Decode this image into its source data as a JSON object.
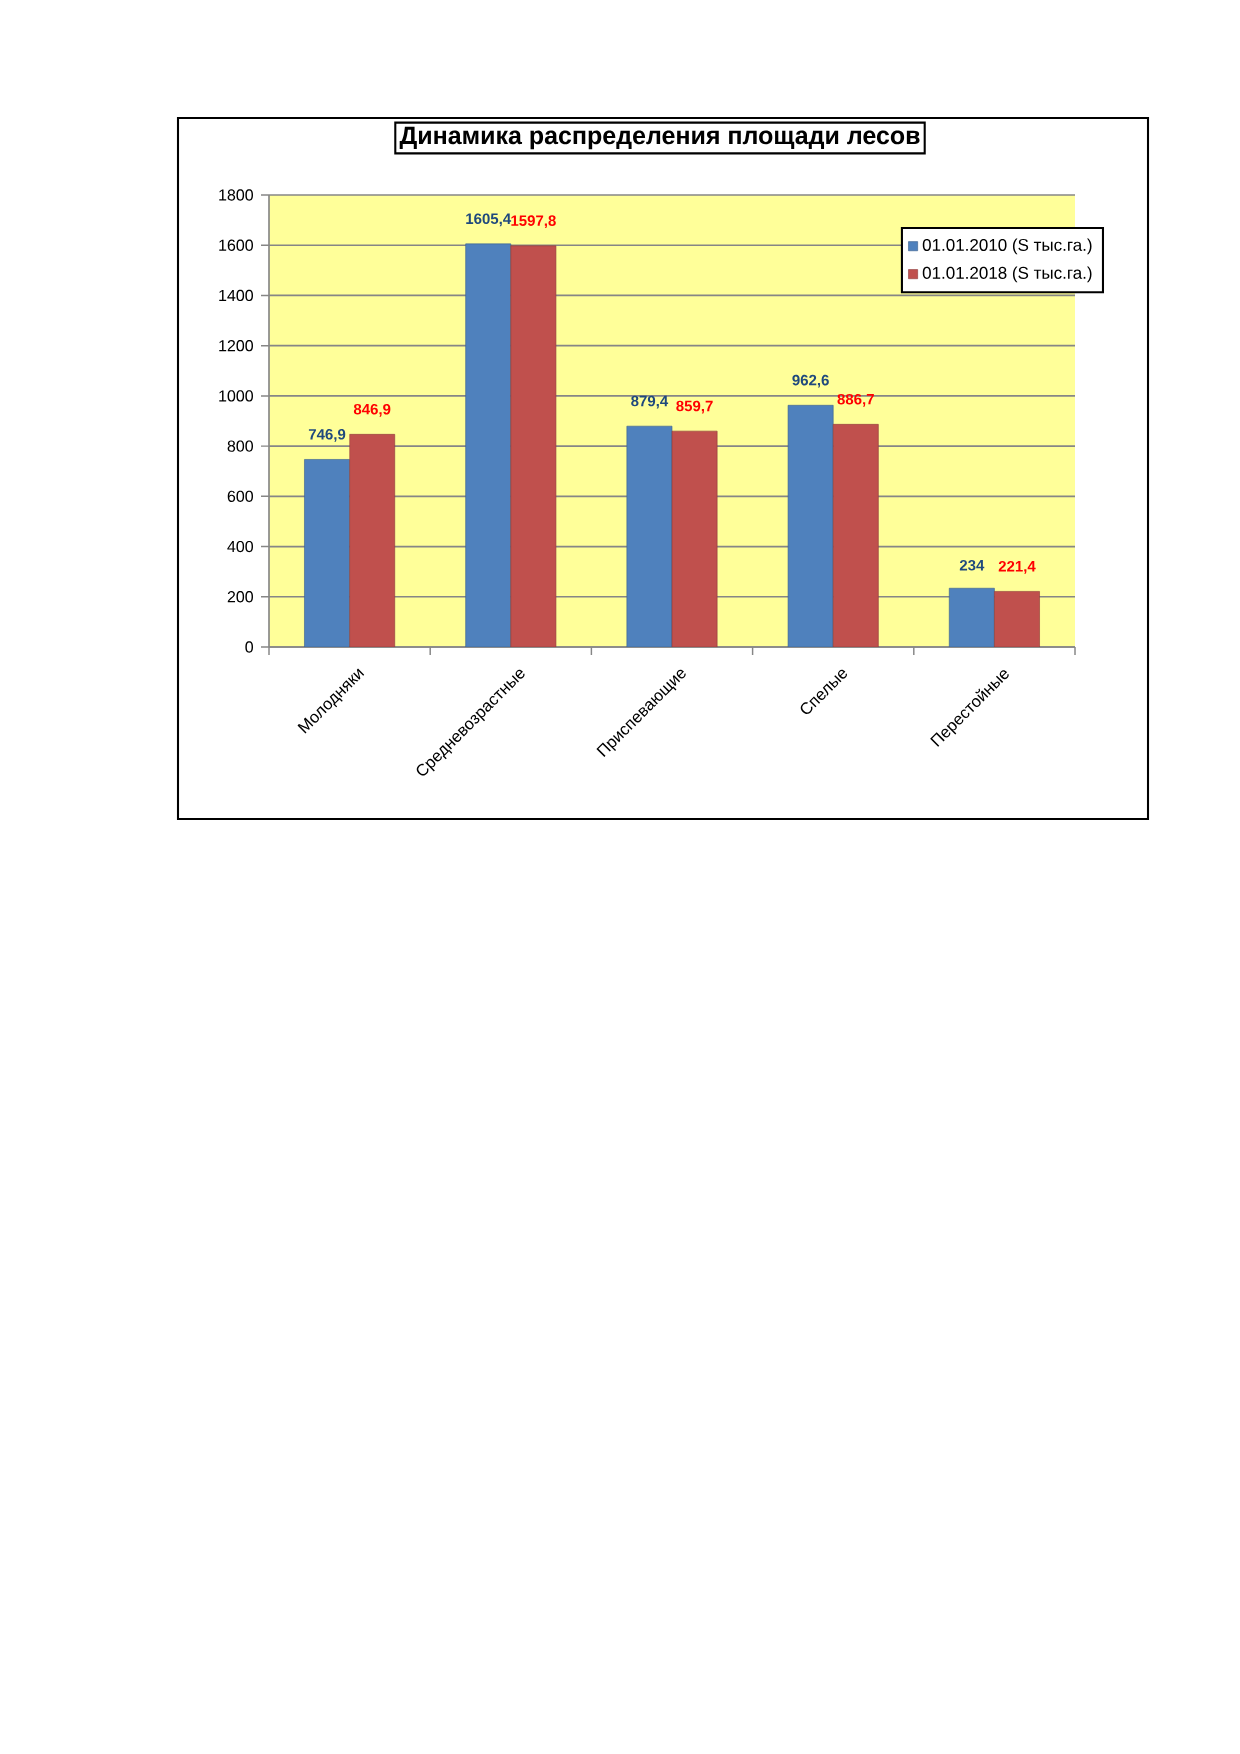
{
  "chart_data": {
    "type": "bar",
    "title": "Динамика распределения площади лесов",
    "categories": [
      "Молодняки",
      "Средневозрастные",
      "Приспевающие",
      "Спелые",
      "Перестойные"
    ],
    "series": [
      {
        "name": "01.01.2010 (S тыс.га.)",
        "color": "#4f81bd",
        "values": [
          746.9,
          1605.4,
          879.4,
          962.6,
          234
        ],
        "value_labels": [
          "746,9",
          "1605,4",
          "879,4",
          "962,6",
          "234"
        ]
      },
      {
        "name": "01.01.2018 (S тыс.га.)",
        "color": "#c0504d",
        "values": [
          846.9,
          1597.8,
          859.7,
          886.7,
          221.4
        ],
        "value_labels": [
          "846,9",
          "1597,8",
          "859,7",
          "886,7",
          "221,4"
        ]
      }
    ],
    "ylim": [
      0,
      1800
    ],
    "yticks": [
      0,
      200,
      400,
      600,
      800,
      1000,
      1200,
      1400,
      1600,
      1800
    ],
    "grid": "y",
    "legend": "top right"
  }
}
